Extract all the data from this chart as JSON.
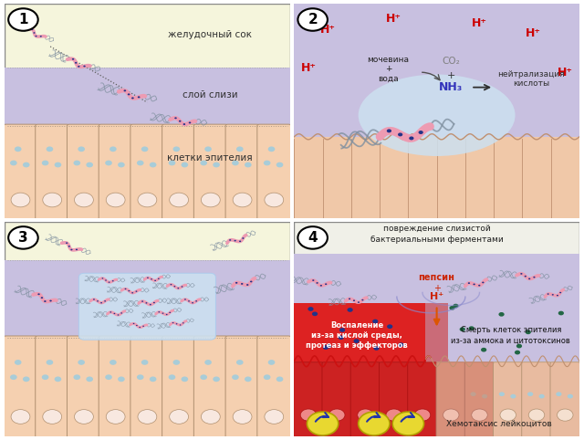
{
  "bg_color": "#ffffff",
  "panel_bg_yellow": "#f8f8e8",
  "panel_bg_green": "#d8ddd0",
  "mucus_color": "#c8c0e0",
  "mucus_color2": "#c0b8dc",
  "epithelium_color": "#f5d0b0",
  "epithelium_color_dark": "#ecc090",
  "epithelium_border": "#b09070",
  "nucleus_color": "#f8e8e0",
  "nucleus_ring": "#d0a080",
  "vacuole_color": "#a8ccd8",
  "bacteria_body": "#f0a0b8",
  "bacteria_body_dark": "#e08090",
  "bacteria_flagella": "#8090a0",
  "h_plus_color": "#cc0000",
  "text_dark": "#202020",
  "text_gray": "#404040",
  "highlight_box": "#cce0f0",
  "inflammation_red": "#cc2020",
  "inflammation_bright": "#e03030",
  "leukocyte_yellow": "#e8d830",
  "leukocyte_border": "#c0b000",
  "leukocyte_arrow": "#3333aa",
  "dot_blue": "#334499",
  "dot_green": "#337755",
  "panel_border": "#888888",
  "panel1_texts": [
    "желудочный сок",
    "слой слизи",
    "клетки эпителия"
  ],
  "panel4_text1": "повреждение слизистой\nбактериальными ферментами",
  "panel4_text2": "пепсин\n+\nH⁺",
  "panel4_text3": "Воспаление\nиз-за кислой среды,\nпротеаз и эффекторов",
  "panel4_text4": "Смерть клеток эпителия\nиз-за аммока и цитотоксинов",
  "panel4_text5": "Хемотаксис лейкоцитов"
}
